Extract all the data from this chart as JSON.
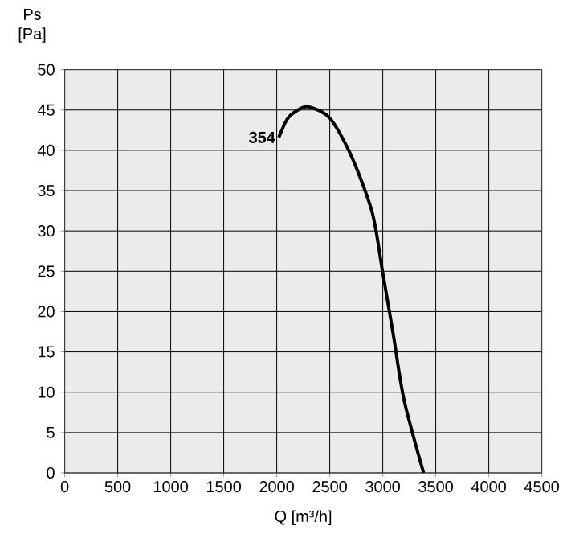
{
  "chart_data": {
    "type": "line",
    "xlabel": "Q [m³/h]",
    "ylabel": "Ps [Pa]",
    "series": [
      {
        "color": "#000000",
        "x": [
          2020,
          2100,
          2200,
          2300,
          2500,
          2700,
          2900,
          3000,
          3100,
          3200,
          3385
        ],
        "values": [
          41.6,
          43.9,
          45.0,
          45.4,
          44.0,
          39.4,
          32.3,
          24.8,
          17.1,
          9.1,
          0
        ]
      }
    ],
    "xlim": [
      0,
      4500
    ],
    "ylim": [
      0,
      50
    ],
    "xticks": [
      0,
      500,
      1000,
      1500,
      2000,
      2500,
      3000,
      3500,
      4000,
      4500
    ],
    "yticks": [
      0,
      5,
      10,
      15,
      20,
      25,
      30,
      35,
      40,
      45,
      50
    ],
    "grid": true,
    "marker": "none",
    "line_style": "solid",
    "annotations": [
      {
        "text": "354",
        "x": 2020,
        "y": 41.6
      }
    ]
  }
}
